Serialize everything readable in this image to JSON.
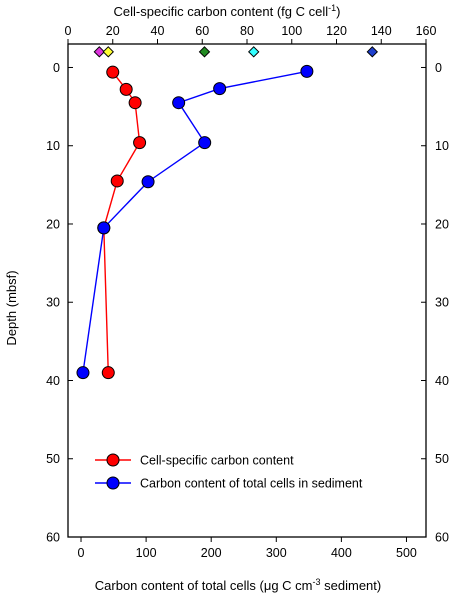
{
  "chart_data": {
    "type": "scatter",
    "top_axis": {
      "title": "Cell-specific carbon content (fg C cell",
      "title_sup": "-1",
      "title_close": ")",
      "range": [
        0,
        160
      ],
      "ticks": [
        0,
        20,
        40,
        60,
        80,
        100,
        120,
        140,
        160
      ]
    },
    "bottom_axis": {
      "title": "Carbon content of total cells (μg C cm",
      "title_sup": "-3",
      "title_tail": " sediment)",
      "range": [
        -20,
        530
      ],
      "ticks": [
        0,
        100,
        200,
        300,
        400,
        500
      ]
    },
    "y_axis": {
      "title": "Depth (mbsf)",
      "range": [
        -3,
        60
      ],
      "ticks": [
        0,
        10,
        20,
        30,
        40,
        50,
        60
      ],
      "inverted": true
    },
    "series": [
      {
        "name": "Cell-specific carbon content",
        "color": "#ff0000",
        "axis": "top",
        "points": [
          {
            "x": 20,
            "y": 0.6
          },
          {
            "x": 26,
            "y": 2.8
          },
          {
            "x": 30,
            "y": 4.5
          },
          {
            "x": 32,
            "y": 9.6
          },
          {
            "x": 22,
            "y": 14.5
          },
          {
            "x": 16,
            "y": 20.5
          },
          {
            "x": 18,
            "y": 39.0
          }
        ]
      },
      {
        "name": "Carbon content of total cells in sediment",
        "color": "#0000ff",
        "axis": "bottom",
        "points": [
          {
            "x": 347,
            "y": 0.5
          },
          {
            "x": 213,
            "y": 2.7
          },
          {
            "x": 150,
            "y": 4.5
          },
          {
            "x": 190,
            "y": 9.6
          },
          {
            "x": 103,
            "y": 14.6
          },
          {
            "x": 35,
            "y": 20.5
          },
          {
            "x": 3,
            "y": 39.0
          }
        ]
      }
    ],
    "reference_markers": [
      {
        "x": 14,
        "color": "#dd33dd"
      },
      {
        "x": 18,
        "color": "#ffff33"
      },
      {
        "x": 61,
        "color": "#228b22"
      },
      {
        "x": 83,
        "color": "#33ffff"
      },
      {
        "x": 136,
        "color": "#1e3fcc"
      }
    ],
    "legend_position": "bottom-left",
    "grid": false
  }
}
